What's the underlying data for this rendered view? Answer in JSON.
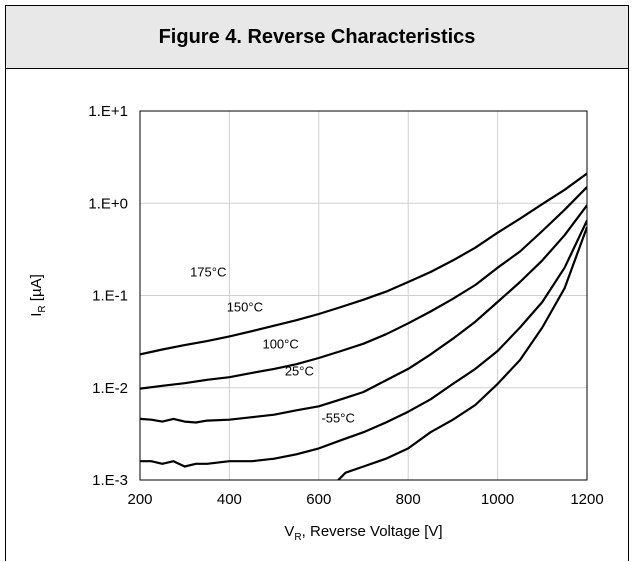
{
  "figure_title": "Figure 4. Reverse Characteristics",
  "chart_data": {
    "type": "line",
    "title": "Figure 4. Reverse Characteristics",
    "xlabel_main": "V",
    "xlabel_sub": "R",
    "xlabel_rest": ", Reverse Voltage [V]",
    "ylabel_main": "I",
    "ylabel_sub": "R",
    "ylabel_rest": " [µA]",
    "xlim": [
      200,
      1200
    ],
    "ylim": [
      0.001,
      10
    ],
    "yscale": "log",
    "grid": true,
    "x_ticks": [
      200,
      400,
      600,
      800,
      1000,
      1200
    ],
    "x_tick_labels": [
      "200",
      "400",
      "600",
      "800",
      "1000",
      "1200"
    ],
    "y_ticks": [
      0.001,
      0.01,
      0.1,
      1,
      10
    ],
    "y_tick_labels": [
      "1.E-3",
      "1.E-2",
      "1.E-1",
      "1.E+0",
      "1.E+1"
    ],
    "series": [
      {
        "name": "175°C",
        "label_at": [
          312,
          0.16
        ],
        "color": "#000000",
        "x": [
          200,
          250,
          300,
          350,
          400,
          450,
          500,
          550,
          600,
          650,
          700,
          750,
          800,
          850,
          900,
          950,
          1000,
          1050,
          1100,
          1150,
          1200
        ],
        "y": [
          0.023,
          0.026,
          0.029,
          0.032,
          0.036,
          0.041,
          0.047,
          0.054,
          0.063,
          0.075,
          0.09,
          0.11,
          0.14,
          0.18,
          0.24,
          0.33,
          0.48,
          0.68,
          0.98,
          1.4,
          2.1
        ]
      },
      {
        "name": "150°C",
        "label_at": [
          394,
          0.067
        ],
        "color": "#000000",
        "x": [
          200,
          250,
          300,
          350,
          400,
          450,
          500,
          550,
          600,
          650,
          700,
          750,
          800,
          850,
          900,
          950,
          1000,
          1050,
          1100,
          1150,
          1200
        ],
        "y": [
          0.0098,
          0.0105,
          0.0112,
          0.0122,
          0.013,
          0.0145,
          0.016,
          0.018,
          0.021,
          0.025,
          0.03,
          0.038,
          0.05,
          0.067,
          0.092,
          0.13,
          0.2,
          0.3,
          0.5,
          0.85,
          1.5
        ]
      },
      {
        "name": "100°C",
        "label_at": [
          474,
          0.0265
        ],
        "color": "#000000",
        "x": [
          200,
          225,
          250,
          275,
          300,
          325,
          350,
          400,
          450,
          500,
          550,
          600,
          650,
          700,
          750,
          800,
          850,
          900,
          950,
          1000,
          1050,
          1100,
          1150,
          1200
        ],
        "y": [
          0.0046,
          0.0045,
          0.0043,
          0.0046,
          0.0043,
          0.0042,
          0.0044,
          0.0045,
          0.0048,
          0.0051,
          0.0057,
          0.0063,
          0.0075,
          0.009,
          0.012,
          0.016,
          0.023,
          0.034,
          0.052,
          0.085,
          0.14,
          0.24,
          0.45,
          0.95
        ]
      },
      {
        "name": "25°C",
        "label_at": [
          524,
          0.0136
        ],
        "color": "#000000",
        "x": [
          200,
          225,
          250,
          275,
          300,
          325,
          350,
          400,
          450,
          500,
          550,
          600,
          650,
          700,
          750,
          800,
          850,
          900,
          950,
          1000,
          1050,
          1100,
          1150,
          1200
        ],
        "y": [
          0.0016,
          0.0016,
          0.0015,
          0.0016,
          0.0014,
          0.0015,
          0.0015,
          0.0016,
          0.0016,
          0.0017,
          0.0019,
          0.0022,
          0.0027,
          0.0033,
          0.0042,
          0.0055,
          0.0075,
          0.011,
          0.016,
          0.025,
          0.045,
          0.085,
          0.2,
          0.65
        ]
      },
      {
        "name": "-55°C",
        "label_at": [
          606,
          0.0042
        ],
        "color": "#000000",
        "x": [
          595,
          600,
          635,
          640,
          660,
          700,
          750,
          800,
          850,
          900,
          950,
          1000,
          1050,
          1100,
          1150,
          1200
        ],
        "y": [
          0.00098,
          0.00094,
          0.00092,
          0.00096,
          0.0012,
          0.0014,
          0.0017,
          0.0022,
          0.0033,
          0.0045,
          0.0065,
          0.011,
          0.02,
          0.045,
          0.12,
          0.55
        ]
      }
    ]
  }
}
